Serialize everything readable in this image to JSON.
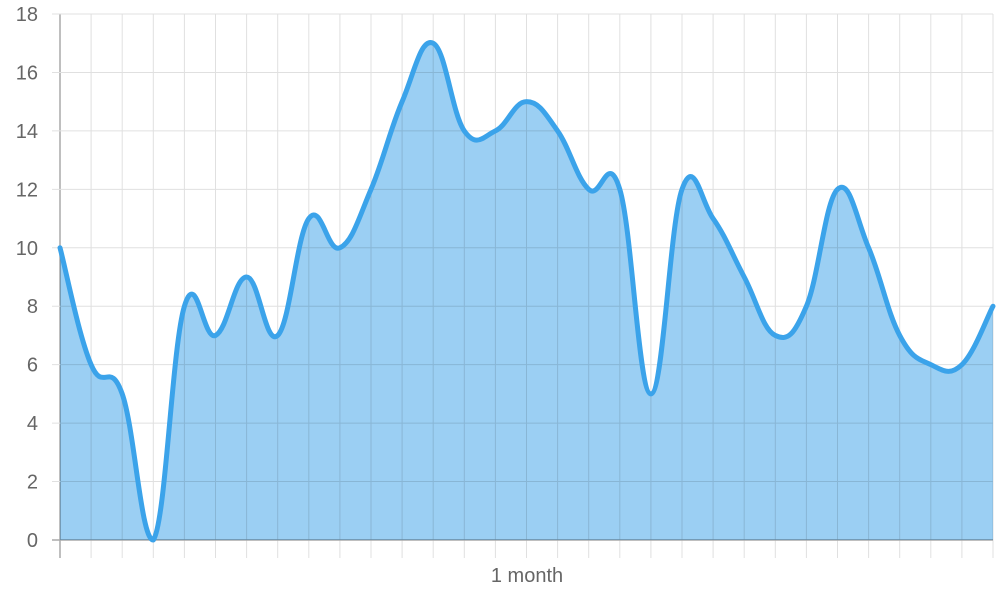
{
  "chart_data": {
    "type": "area",
    "title": "",
    "xlabel": "1 month",
    "ylabel": "",
    "ylim": [
      0,
      18
    ],
    "yticks": [
      "0",
      "2",
      "4",
      "6",
      "8",
      "10",
      "12",
      "14",
      "16",
      "18"
    ],
    "grid": true,
    "line_color": "#3ba3ea",
    "fill_color": "#9bcff3",
    "values": [
      10,
      6,
      5,
      0,
      8,
      7,
      9,
      7,
      11,
      10,
      12,
      15,
      17,
      14,
      14,
      15,
      14,
      12,
      12,
      5,
      12,
      11,
      9,
      7,
      8,
      12,
      10,
      7,
      6,
      6,
      8
    ]
  }
}
